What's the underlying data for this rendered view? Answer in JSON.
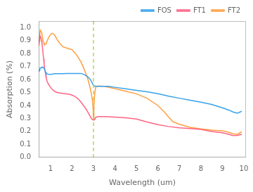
{
  "chart_data": {
    "type": "line",
    "xlabel": "Wavelength (um)",
    "ylabel": "Absorption (%)",
    "xlim": [
      0.45,
      10.1
    ],
    "ylim": [
      0.0,
      1.05
    ],
    "xticks": [
      1,
      2,
      3,
      4,
      5,
      6,
      7,
      8,
      9,
      10
    ],
    "yticks": [
      {
        "value": 0.0,
        "label": "0.0"
      },
      0.1,
      0.2,
      0.3,
      0.4,
      0.5,
      0.6,
      0.7,
      0.8,
      0.9,
      {
        "value": 1.0,
        "label": "1.0"
      }
    ],
    "grid": false,
    "legend": "upper right",
    "annotations": [
      {
        "type": "vline",
        "x": 3.0,
        "color": "#b8d44a",
        "line_style": "dashed"
      }
    ],
    "series": [
      {
        "name": "FOS",
        "x": [
          0.45,
          0.48,
          0.5,
          0.52,
          0.55,
          0.58,
          0.6,
          0.63,
          0.65,
          0.68,
          0.7,
          0.73,
          0.75,
          0.78,
          0.8,
          0.85,
          0.9,
          0.95,
          1.0,
          1.1,
          1.2,
          1.3,
          1.4,
          1.5,
          1.6,
          1.7,
          1.8,
          1.9,
          2.0,
          2.1,
          2.2,
          2.3,
          2.4,
          2.5,
          2.6,
          2.65,
          2.7,
          2.75,
          2.8,
          2.85,
          2.9,
          2.95,
          3.0,
          3.05,
          3.1,
          3.2,
          3.3,
          3.5,
          3.7,
          4.0,
          4.5,
          5.0,
          5.5,
          6.0,
          6.5,
          7.0,
          7.5,
          8.0,
          8.5,
          9.0,
          9.3,
          9.5,
          9.7,
          9.9
        ],
        "values": [
          0.66,
          0.67,
          0.68,
          0.69,
          0.69,
          0.69,
          0.695,
          0.695,
          0.695,
          0.69,
          0.685,
          0.675,
          0.665,
          0.655,
          0.648,
          0.643,
          0.641,
          0.64,
          0.64,
          0.642,
          0.645,
          0.645,
          0.645,
          0.645,
          0.645,
          0.647,
          0.647,
          0.647,
          0.647,
          0.647,
          0.647,
          0.647,
          0.647,
          0.643,
          0.635,
          0.63,
          0.625,
          0.618,
          0.61,
          0.6,
          0.588,
          0.57,
          0.555,
          0.55,
          0.548,
          0.547,
          0.547,
          0.547,
          0.547,
          0.54,
          0.528,
          0.516,
          0.505,
          0.49,
          0.472,
          0.456,
          0.44,
          0.425,
          0.408,
          0.382,
          0.365,
          0.35,
          0.34,
          0.355
        ]
      },
      {
        "name": "FT1",
        "x": [
          0.45,
          0.48,
          0.5,
          0.52,
          0.55,
          0.58,
          0.6,
          0.63,
          0.65,
          0.68,
          0.7,
          0.73,
          0.75,
          0.78,
          0.8,
          0.85,
          0.9,
          0.95,
          1.0,
          1.05,
          1.1,
          1.2,
          1.3,
          1.4,
          1.5,
          1.6,
          1.7,
          1.8,
          1.9,
          2.0,
          2.1,
          2.2,
          2.3,
          2.4,
          2.5,
          2.6,
          2.7,
          2.75,
          2.8,
          2.85,
          2.9,
          2.95,
          3.0,
          3.05,
          3.1,
          3.2,
          3.5,
          4.0,
          4.5,
          5.0,
          5.5,
          6.0,
          6.5,
          7.0,
          7.5,
          8.0,
          8.5,
          9.0,
          9.2,
          9.5,
          9.7,
          9.9
        ],
        "values": [
          0.86,
          0.92,
          0.94,
          0.935,
          0.92,
          0.9,
          0.88,
          0.84,
          0.8,
          0.76,
          0.72,
          0.68,
          0.66,
          0.63,
          0.61,
          0.58,
          0.565,
          0.552,
          0.54,
          0.53,
          0.52,
          0.508,
          0.5,
          0.497,
          0.495,
          0.492,
          0.49,
          0.488,
          0.485,
          0.48,
          0.472,
          0.462,
          0.448,
          0.43,
          0.408,
          0.385,
          0.36,
          0.345,
          0.33,
          0.315,
          0.3,
          0.292,
          0.288,
          0.29,
          0.308,
          0.315,
          0.314,
          0.31,
          0.305,
          0.295,
          0.272,
          0.252,
          0.238,
          0.228,
          0.222,
          0.215,
          0.2,
          0.19,
          0.182,
          0.168,
          0.17,
          0.178
        ]
      },
      {
        "name": "FT2",
        "x": [
          0.45,
          0.48,
          0.5,
          0.52,
          0.55,
          0.58,
          0.6,
          0.63,
          0.65,
          0.68,
          0.7,
          0.73,
          0.75,
          0.78,
          0.8,
          0.85,
          0.9,
          0.95,
          1.0,
          1.05,
          1.1,
          1.2,
          1.3,
          1.4,
          1.5,
          1.6,
          1.7,
          1.8,
          1.9,
          2.0,
          2.1,
          2.2,
          2.3,
          2.4,
          2.5,
          2.6,
          2.7,
          2.75,
          2.8,
          2.85,
          2.9,
          2.95,
          2.98,
          3.0,
          3.02,
          3.05,
          3.1,
          3.15,
          3.2,
          3.5,
          4.0,
          4.5,
          5.0,
          5.5,
          6.0,
          6.3,
          6.5,
          6.7,
          7.0,
          7.5,
          8.0,
          8.5,
          9.0,
          9.2,
          9.5,
          9.7,
          9.9
        ],
        "values": [
          0.86,
          0.9,
          0.96,
          0.98,
          0.975,
          0.96,
          0.945,
          0.92,
          0.9,
          0.885,
          0.875,
          0.87,
          0.87,
          0.875,
          0.88,
          0.9,
          0.92,
          0.935,
          0.945,
          0.955,
          0.955,
          0.94,
          0.91,
          0.885,
          0.865,
          0.85,
          0.845,
          0.84,
          0.835,
          0.83,
          0.812,
          0.792,
          0.768,
          0.74,
          0.705,
          0.665,
          0.62,
          0.595,
          0.565,
          0.53,
          0.49,
          0.44,
          0.38,
          0.295,
          0.39,
          0.48,
          0.54,
          0.548,
          0.55,
          0.548,
          0.53,
          0.51,
          0.49,
          0.455,
          0.4,
          0.35,
          0.31,
          0.275,
          0.255,
          0.232,
          0.22,
          0.21,
          0.205,
          0.198,
          0.182,
          0.178,
          0.198
        ]
      }
    ]
  }
}
